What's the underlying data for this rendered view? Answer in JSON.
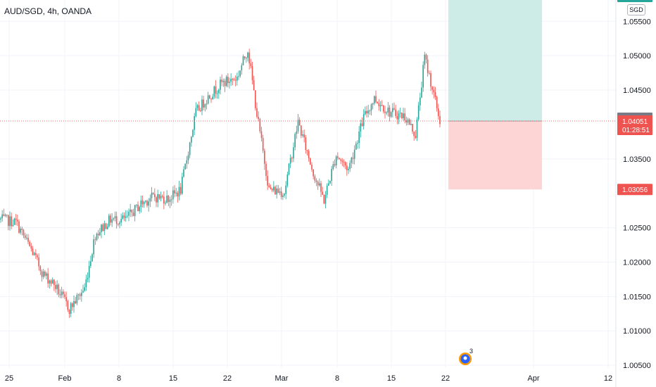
{
  "header": {
    "title": "AUD/SGD, 4h, OANDA",
    "currency_button": "SGD"
  },
  "colors": {
    "up": "#26a69a",
    "down": "#ef5350",
    "grid": "#f0f3fa",
    "profit_zone": "#cdebe7",
    "loss_zone": "#fdd5d4",
    "last_price_tag": "#787b86",
    "stop_tag": "#ef5350"
  },
  "overlay": {
    "event_badge_count": "3"
  },
  "chart_data": {
    "type": "candlestick",
    "title": "AUD/SGD, 4h, OANDA",
    "ylim": [
      1.0046,
      1.0581
    ],
    "y_ticks": [
      "1.05500",
      "1.05000",
      "1.04500",
      "1.03500",
      "1.02500",
      "1.02000",
      "1.01500",
      "1.01000",
      "1.00500"
    ],
    "x_ticks": [
      "25",
      "Feb",
      "8",
      "15",
      "22",
      "Mar",
      "8",
      "15",
      "22",
      "Apr",
      "12"
    ],
    "grid": true,
    "anchors": [
      [
        0,
        1.0262
      ],
      [
        10,
        1.0258
      ],
      [
        20,
        1.0218
      ],
      [
        28,
        1.0182
      ],
      [
        35,
        1.0168
      ],
      [
        45,
        1.0132
      ],
      [
        55,
        1.0162
      ],
      [
        62,
        1.024
      ],
      [
        72,
        1.0262
      ],
      [
        82,
        1.0262
      ],
      [
        92,
        1.0285
      ],
      [
        100,
        1.0295
      ],
      [
        110,
        1.0292
      ],
      [
        118,
        1.0305
      ],
      [
        128,
        1.0418
      ],
      [
        136,
        1.044
      ],
      [
        145,
        1.046
      ],
      [
        155,
        1.0468
      ],
      [
        162,
        1.051
      ],
      [
        168,
        1.0415
      ],
      [
        176,
        1.0305
      ],
      [
        186,
        1.0302
      ],
      [
        195,
        1.0404
      ],
      [
        205,
        1.033
      ],
      [
        212,
        1.029
      ],
      [
        220,
        1.0356
      ],
      [
        228,
        1.0335
      ],
      [
        238,
        1.041
      ],
      [
        245,
        1.0438
      ],
      [
        255,
        1.0418
      ],
      [
        265,
        1.0412
      ],
      [
        272,
        1.0385
      ],
      [
        278,
        1.0498
      ],
      [
        282,
        1.0462
      ],
      [
        288,
        1.0405
      ]
    ],
    "current_price": "1.04051",
    "countdown": "01:28:51",
    "last_price_label": "1.04052",
    "position": {
      "type": "short",
      "entry": 1.0405,
      "stop": 1.03056,
      "stop_label": "1.03056",
      "target_above_view": true
    }
  }
}
